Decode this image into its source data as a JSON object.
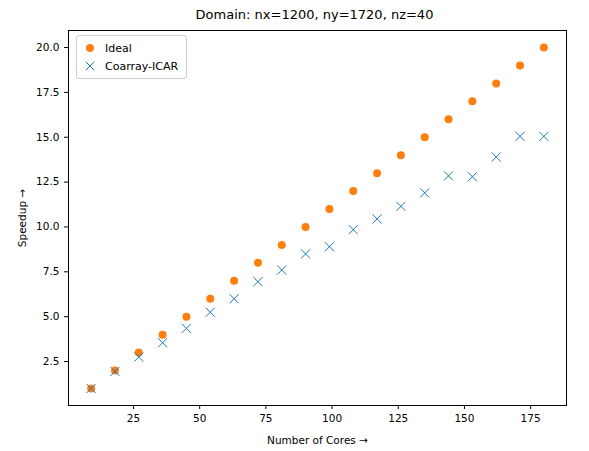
{
  "chart_data": {
    "type": "scatter",
    "title": "Domain: nx=1200, ny=1720, nz=40",
    "x_label": "Number of Cores",
    "y_label": "Speedup",
    "x": [
      9,
      18,
      27,
      36,
      45,
      54,
      63,
      72,
      81,
      90,
      99,
      108,
      117,
      126,
      135,
      144,
      153,
      162,
      171,
      180
    ],
    "series": [
      {
        "name": "Ideal",
        "color": "#ff7f0e",
        "marker": "circle",
        "values": [
          1,
          2,
          3,
          4,
          5,
          6,
          7,
          8,
          9,
          10,
          11,
          12,
          13,
          14,
          15,
          16,
          17,
          18,
          19,
          20
        ]
      },
      {
        "name": "Coarray-ICAR",
        "color": "#1f77b4",
        "marker": "x",
        "values": [
          1.0,
          1.95,
          2.75,
          3.55,
          4.35,
          5.25,
          6.0,
          6.95,
          7.6,
          8.5,
          8.9,
          9.85,
          10.45,
          11.15,
          11.9,
          12.85,
          12.8,
          13.9,
          15.05,
          15.05
        ]
      }
    ],
    "xlim": [
      0.45,
      188.55
    ],
    "xticks": [
      25,
      50,
      75,
      100,
      125,
      150,
      175
    ],
    "ylim": [
      0.05,
      20.95
    ],
    "yticks": [
      2.5,
      {
        "value": 5,
        "label": "5.0"
      },
      7.5,
      {
        "value": 10,
        "label": "10.0"
      },
      12.5,
      {
        "value": 15,
        "label": "15.0"
      },
      17.5,
      {
        "value": 20,
        "label": "20.0"
      }
    ],
    "grid": false,
    "legend": "upper left"
  }
}
